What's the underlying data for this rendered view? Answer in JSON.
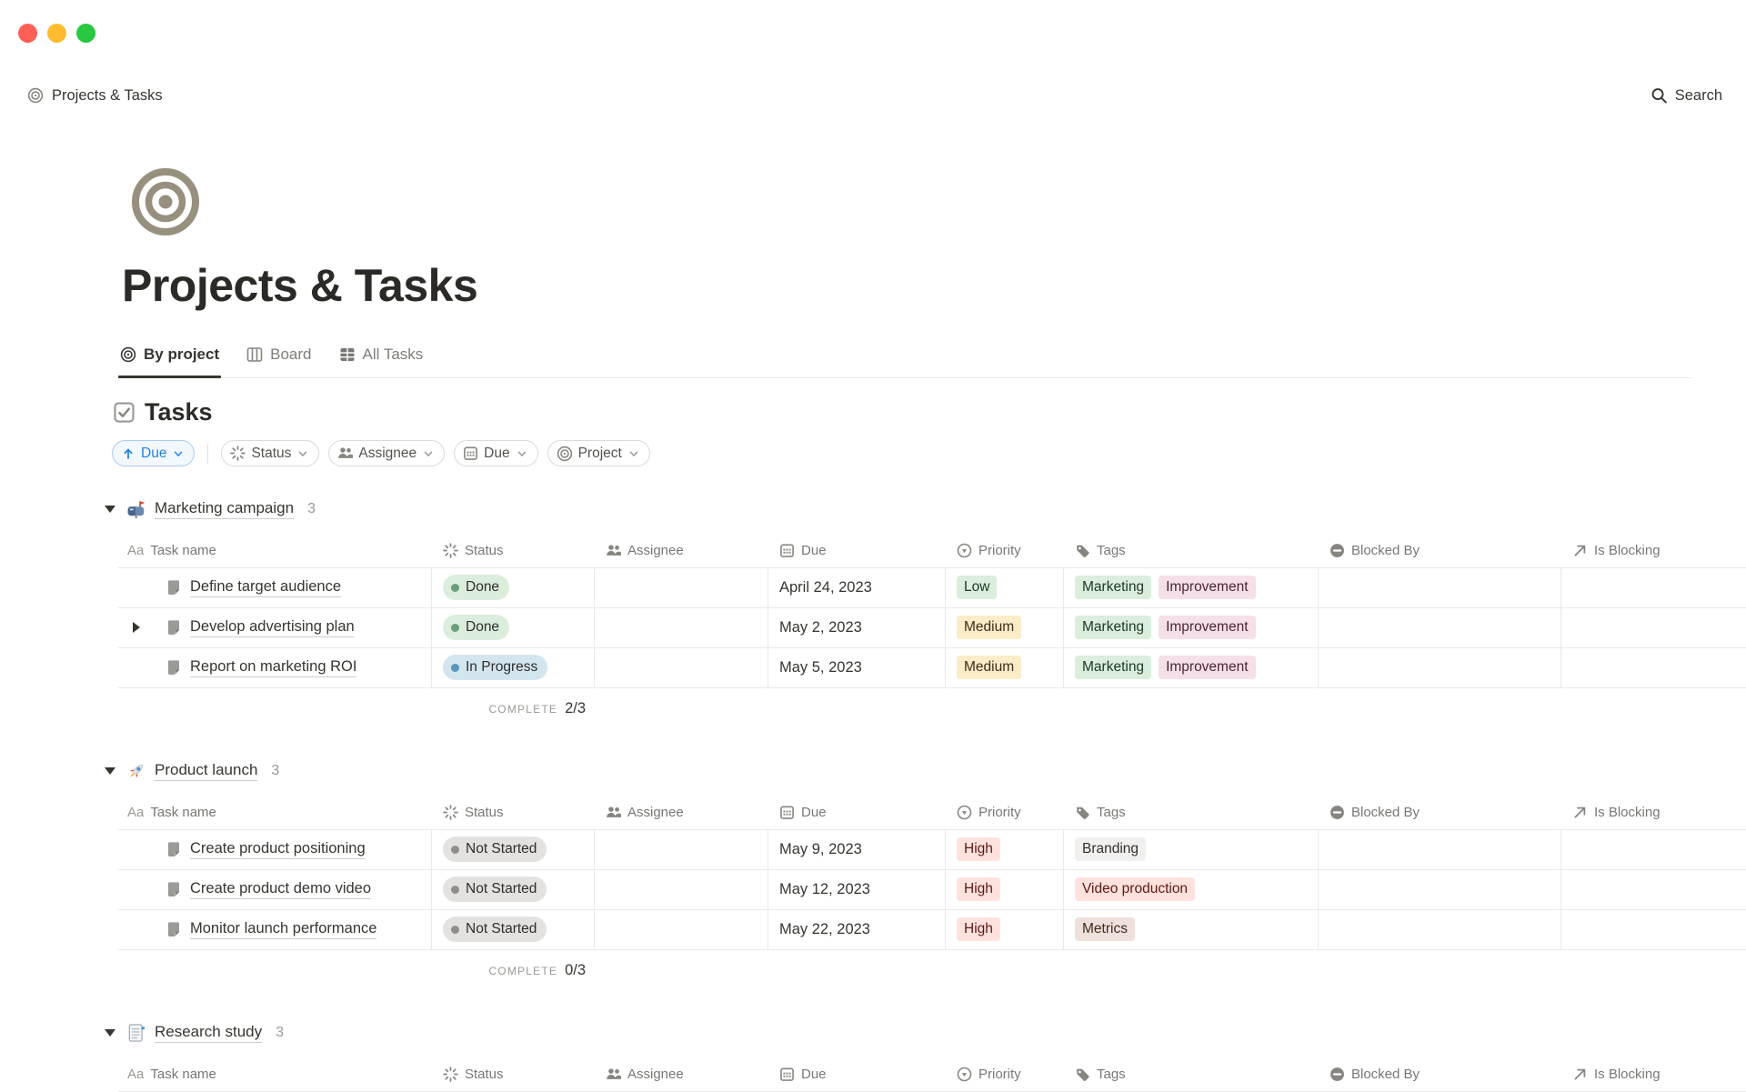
{
  "palette": {
    "accent_blue": "#2383e2",
    "text_primary": "#37352f",
    "text_secondary": "#787774",
    "row_border": "#e9e9e7",
    "pill_green": "#dbeddb",
    "pill_blue": "#d3e5ef",
    "pill_gray": "#e3e2e0",
    "pill_yellow": "#fdecc8",
    "pill_red": "#ffe2dd",
    "pill_pink": "#f5e0e9",
    "pill_brown": "#eee0da",
    "traffic_red": "#ff5f57",
    "traffic_yellow": "#febc2e",
    "traffic_green": "#28c840"
  },
  "navbar": {
    "breadcrumb": "Projects & Tasks",
    "search_label": "Search"
  },
  "page": {
    "title": "Projects & Tasks"
  },
  "tabs": [
    {
      "label": "By project",
      "icon": "bullseye-icon",
      "active": true
    },
    {
      "label": "Board",
      "icon": "board-icon",
      "active": false
    },
    {
      "label": "All Tasks",
      "icon": "table-icon",
      "active": false
    }
  ],
  "collection": {
    "title": "Tasks"
  },
  "filters": {
    "sort_chip": {
      "label": "Due",
      "icon": "arrow-up-icon"
    },
    "chips": [
      {
        "label": "Status",
        "icon": "status-spinner-icon"
      },
      {
        "label": "Assignee",
        "icon": "people-icon"
      },
      {
        "label": "Due",
        "icon": "calendar-icon"
      },
      {
        "label": "Project",
        "icon": "bullseye-icon"
      }
    ]
  },
  "table": {
    "columns": [
      {
        "key": "task",
        "label": "Task name",
        "icon": "aa"
      },
      {
        "key": "status",
        "label": "Status",
        "icon": "status"
      },
      {
        "key": "assignee",
        "label": "Assignee",
        "icon": "assignee"
      },
      {
        "key": "due",
        "label": "Due",
        "icon": "due"
      },
      {
        "key": "priority",
        "label": "Priority",
        "icon": "priority"
      },
      {
        "key": "tags",
        "label": "Tags",
        "icon": "tags"
      },
      {
        "key": "blocked",
        "label": "Blocked By",
        "icon": "blocked"
      },
      {
        "key": "blocking",
        "label": "Is Blocking",
        "icon": "blocking"
      }
    ]
  },
  "groups": [
    {
      "icon": "mailbox-icon",
      "name": "Marketing campaign",
      "count": "3",
      "complete_label": "COMPLETE",
      "complete_value": "2/3",
      "rows": [
        {
          "task": "Define target audience",
          "has_toggle": false,
          "status": {
            "label": "Done",
            "color": "green"
          },
          "due": "April 24, 2023",
          "priority": {
            "label": "Low",
            "color": "green"
          },
          "tags": [
            {
              "label": "Marketing",
              "color": "green"
            },
            {
              "label": "Improvement",
              "color": "pink"
            }
          ]
        },
        {
          "task": "Develop advertising plan",
          "has_toggle": true,
          "status": {
            "label": "Done",
            "color": "green"
          },
          "due": "May 2, 2023",
          "priority": {
            "label": "Medium",
            "color": "yellow"
          },
          "tags": [
            {
              "label": "Marketing",
              "color": "green"
            },
            {
              "label": "Improvement",
              "color": "pink"
            }
          ]
        },
        {
          "task": "Report on marketing ROI",
          "has_toggle": false,
          "status": {
            "label": "In Progress",
            "color": "blue"
          },
          "due": "May 5, 2023",
          "priority": {
            "label": "Medium",
            "color": "yellow"
          },
          "tags": [
            {
              "label": "Marketing",
              "color": "green"
            },
            {
              "label": "Improvement",
              "color": "pink"
            }
          ]
        }
      ]
    },
    {
      "icon": "rocket-icon",
      "name": "Product launch",
      "count": "3",
      "complete_label": "COMPLETE",
      "complete_value": "0/3",
      "rows": [
        {
          "task": "Create product positioning",
          "has_toggle": false,
          "status": {
            "label": "Not Started",
            "color": "gray"
          },
          "due": "May 9, 2023",
          "priority": {
            "label": "High",
            "color": "red"
          },
          "tags": [
            {
              "label": "Branding",
              "color": "lightgray"
            }
          ]
        },
        {
          "task": "Create product demo video",
          "has_toggle": false,
          "status": {
            "label": "Not Started",
            "color": "gray"
          },
          "due": "May 12, 2023",
          "priority": {
            "label": "High",
            "color": "red"
          },
          "tags": [
            {
              "label": "Video production",
              "color": "red"
            }
          ]
        },
        {
          "task": "Monitor launch performance",
          "has_toggle": false,
          "status": {
            "label": "Not Started",
            "color": "gray"
          },
          "due": "May 22, 2023",
          "priority": {
            "label": "High",
            "color": "red"
          },
          "tags": [
            {
              "label": "Metrics",
              "color": "brown"
            }
          ]
        }
      ]
    },
    {
      "icon": "bookmark-icon",
      "name": "Research study",
      "count": "3",
      "rows": []
    }
  ]
}
